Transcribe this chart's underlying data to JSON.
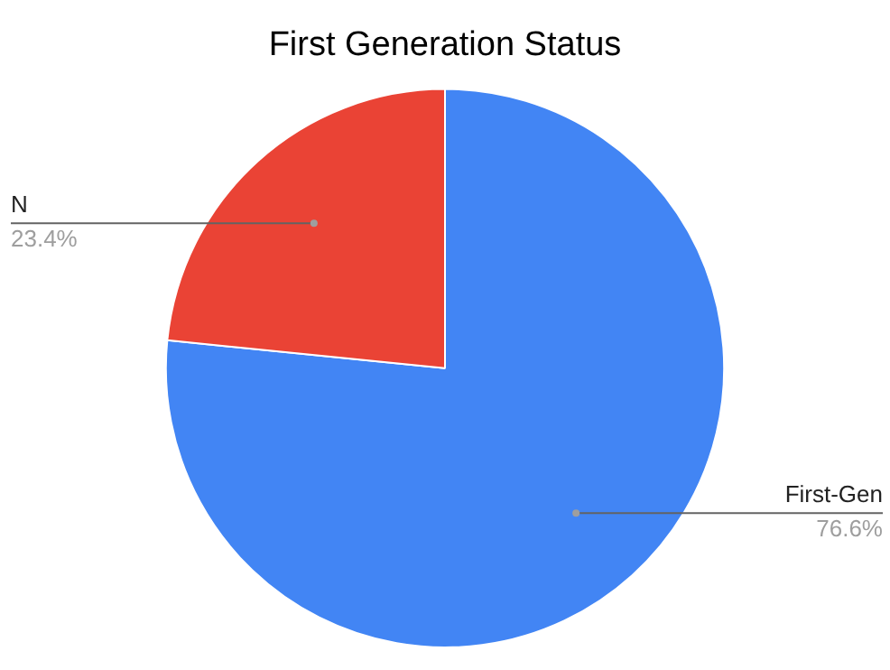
{
  "chart_data": {
    "type": "pie",
    "title": "First Generation Status",
    "categories": [
      "First-Gen",
      "N"
    ],
    "values": [
      76.6,
      23.4
    ],
    "colors": [
      "#4285f4",
      "#ea4335"
    ],
    "value_labels": [
      "76.6%",
      "23.4%"
    ],
    "legend": false
  }
}
